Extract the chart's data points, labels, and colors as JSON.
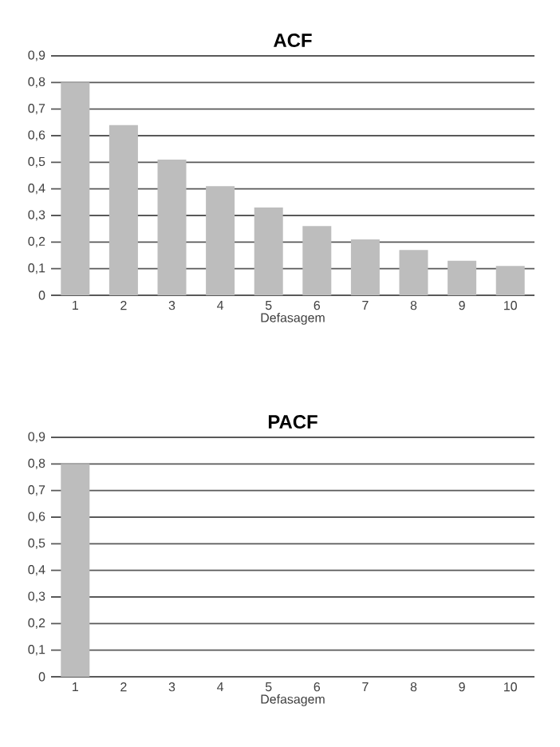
{
  "chart_data": [
    {
      "type": "bar",
      "title": "ACF",
      "xlabel": "Defasagem",
      "categories": [
        "1",
        "2",
        "3",
        "4",
        "5",
        "6",
        "7",
        "8",
        "9",
        "10"
      ],
      "values": [
        0.8,
        0.64,
        0.51,
        0.41,
        0.33,
        0.26,
        0.21,
        0.17,
        0.13,
        0.11
      ],
      "color": "#bdbdbd",
      "ylim": [
        0,
        0.9
      ],
      "yticks": [
        0,
        {
          "value": 0.1,
          "label": "0,1"
        },
        {
          "value": 0.2,
          "label": "0,2"
        },
        {
          "value": 0.3,
          "label": "0,3"
        },
        {
          "value": 0.4,
          "label": "0,4"
        },
        {
          "value": 0.5,
          "label": "0,5"
        },
        {
          "value": 0.6,
          "label": "0,6"
        },
        {
          "value": 0.7,
          "label": "0,7"
        },
        {
          "value": 0.8,
          "label": "0,8"
        },
        {
          "value": 0.9,
          "label": "0,9"
        }
      ],
      "grid": "y"
    },
    {
      "type": "bar",
      "title": "PACF",
      "xlabel": "Defasagem",
      "categories": [
        "1",
        "2",
        "3",
        "4",
        "5",
        "6",
        "7",
        "8",
        "9",
        "10"
      ],
      "values": [
        0.8,
        0,
        0,
        0,
        0,
        0,
        0,
        0,
        0,
        0
      ],
      "color": "#bdbdbd",
      "ylim": [
        0,
        0.9
      ],
      "yticks": [
        0,
        {
          "value": 0.1,
          "label": "0,1"
        },
        {
          "value": 0.2,
          "label": "0,2"
        },
        {
          "value": 0.3,
          "label": "0,3"
        },
        {
          "value": 0.4,
          "label": "0,4"
        },
        {
          "value": 0.5,
          "label": "0,5"
        },
        {
          "value": 0.6,
          "label": "0,6"
        },
        {
          "value": 0.7,
          "label": "0,7"
        },
        {
          "value": 0.8,
          "label": "0,8"
        },
        {
          "value": 0.9,
          "label": "0,9"
        }
      ],
      "grid": "y"
    }
  ]
}
